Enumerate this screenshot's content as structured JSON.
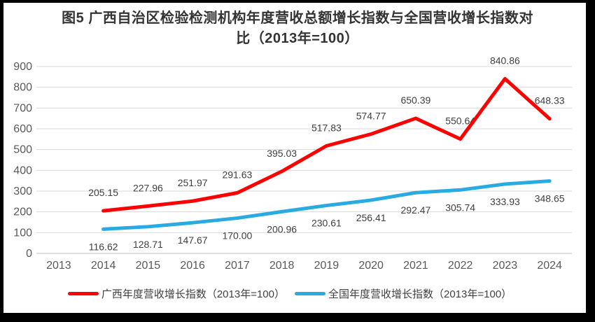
{
  "header": {
    "title_line1": "图5  广西自治区检验检测机构年度营收总额增长指数与全国营收增长指数对",
    "title_line2": "比（2013年=100）"
  },
  "colors": {
    "guangxi_line": "#FF0000",
    "national_line": "#29ABE2",
    "gridline": "#D9D9D9",
    "axis_line": "#BFBFBF",
    "axis_text": "#595959",
    "data_label_text": "#404040",
    "title_text": "#333333",
    "frame": "#000000",
    "background": "#FFFFFF"
  },
  "legend": [
    {
      "label": "广西年度营收增长指数（2013年=100）",
      "color": "#FF0000"
    },
    {
      "label": "全国年度营收增长指数（2013年=100）",
      "color": "#29ABE2"
    }
  ],
  "chart_data": {
    "type": "line",
    "title": "图5 广西自治区检验检测机构年度营收总额增长指数与全国营收增长指数对比（2013年=100）",
    "categories": [
      "2013",
      "2014",
      "2015",
      "2016",
      "2017",
      "2018",
      "2019",
      "2020",
      "2021",
      "2022",
      "2023",
      "2024"
    ],
    "series": [
      {
        "name": "广西年度营收增长指数（2013年=100）",
        "color": "#FF0000",
        "label_position": "above",
        "values": [
          null,
          205.15,
          227.96,
          251.97,
          291.63,
          395.03,
          517.83,
          574.77,
          650.39,
          550.64,
          840.86,
          648.33
        ]
      },
      {
        "name": "全国年度营收增长指数（2013年=100）",
        "color": "#29ABE2",
        "label_position": "below",
        "values": [
          null,
          116.62,
          128.71,
          147.67,
          170.0,
          200.96,
          230.61,
          256.41,
          292.47,
          305.74,
          333.93,
          348.65
        ]
      }
    ],
    "xlabel": "",
    "ylabel": "",
    "ylim": [
      0,
      900
    ],
    "ytick_step": 100,
    "grid": true,
    "legend_position": "bottom",
    "value_label_decimals": 2
  }
}
